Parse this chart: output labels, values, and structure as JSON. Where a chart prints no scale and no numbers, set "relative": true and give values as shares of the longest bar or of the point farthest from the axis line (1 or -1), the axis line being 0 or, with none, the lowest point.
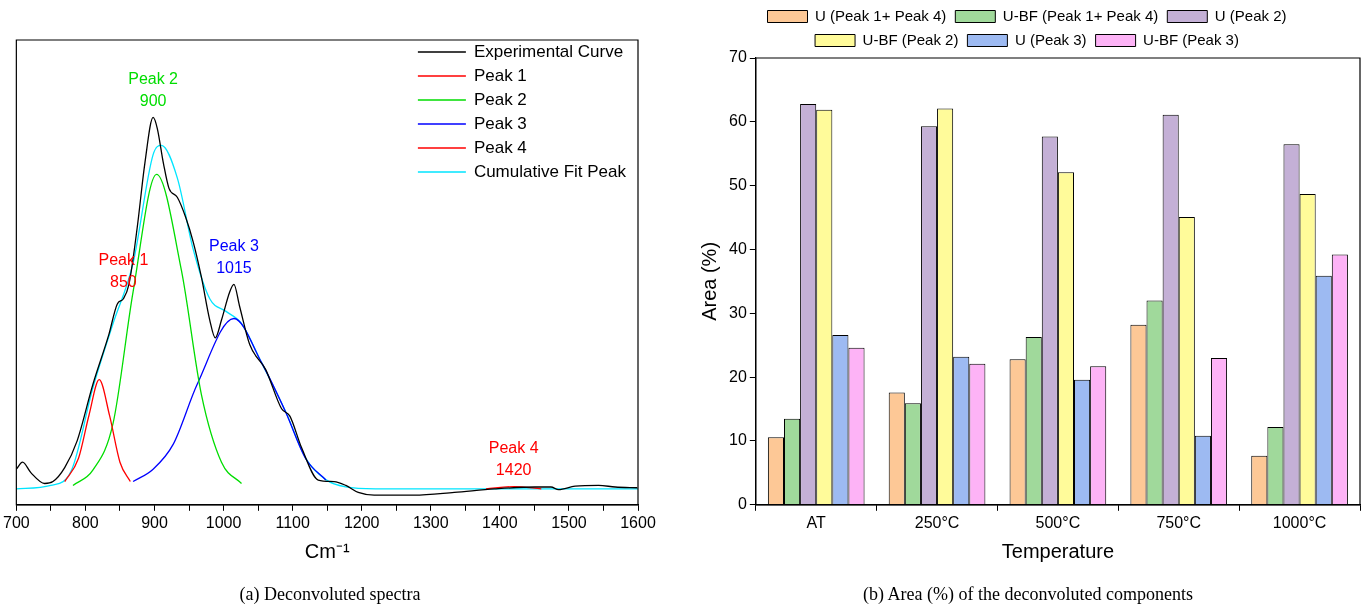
{
  "chart_data": [
    {
      "type": "line",
      "relative": true,
      "xlabel": "Cm⁻¹",
      "xlim": [
        700,
        1600
      ],
      "xticks": [
        700,
        {
          "value": 750,
          "label": null
        },
        800,
        {
          "value": 850,
          "label": null
        },
        900,
        {
          "value": 950,
          "label": null
        },
        1000,
        {
          "value": 1050,
          "label": null
        },
        1100,
        {
          "value": 1150,
          "label": null
        },
        1200,
        {
          "value": 1250,
          "label": null
        },
        1300,
        {
          "value": 1350,
          "label": null
        },
        1400,
        {
          "value": 1450,
          "label": null
        },
        1500,
        {
          "value": 1550,
          "label": null
        },
        1600
      ],
      "legend": "top right",
      "tick_labels": "x",
      "grid": false,
      "marker": "none",
      "line_style": "solid",
      "series": [
        {
          "name": "Experimental Curve",
          "color": "#000000",
          "x": [
            700,
            709,
            721,
            741,
            753,
            770,
            788,
            811,
            834,
            846,
            855,
            863,
            875,
            886,
            898,
            904,
            913,
            921,
            933,
            945,
            956,
            968,
            980,
            988,
            997,
            1009,
            1015,
            1023,
            1038,
            1061,
            1084,
            1096,
            1113,
            1137,
            1160,
            1177,
            1195,
            1218,
            1276,
            1334,
            1392,
            1451,
            1474,
            1485,
            1509,
            1543,
            1567,
            1599
          ],
          "values": [
            0.092,
            0.11,
            0.083,
            0.055,
            0.06,
            0.096,
            0.165,
            0.312,
            0.44,
            0.518,
            0.532,
            0.569,
            0.716,
            0.881,
            1,
            0.972,
            0.881,
            0.817,
            0.794,
            0.743,
            0.679,
            0.587,
            0.477,
            0.431,
            0.477,
            0.55,
            0.569,
            0.514,
            0.413,
            0.349,
            0.248,
            0.229,
            0.147,
            0.064,
            0.06,
            0.05,
            0.032,
            0.025,
            0.025,
            0.032,
            0.041,
            0.046,
            0.046,
            0.039,
            0.048,
            0.05,
            0.046,
            0.044
          ]
        },
        {
          "name": "Peak 1",
          "color": "#ff0000",
          "x": [
            770,
            790,
            805,
            820,
            835,
            850,
            865
          ],
          "values": [
            0.06,
            0.12,
            0.23,
            0.323,
            0.23,
            0.11,
            0.06
          ]
        },
        {
          "name": "Peak 2",
          "color": "#00dd00",
          "x": [
            782,
            811,
            840,
            869,
            903,
            939,
            968,
            997,
            1026
          ],
          "values": [
            0.05,
            0.09,
            0.21,
            0.55,
            0.853,
            0.605,
            0.284,
            0.11,
            0.055
          ]
        },
        {
          "name": "Peak 3",
          "color": "#0000ff",
          "x": [
            869,
            898,
            927,
            962,
            1015,
            1055,
            1090,
            1119,
            1148
          ],
          "values": [
            0.06,
            0.092,
            0.156,
            0.312,
            0.481,
            0.367,
            0.239,
            0.119,
            0.064
          ]
        },
        {
          "name": "Peak 4",
          "color": "#ff0000",
          "x": [
            1380,
            1420,
            1460
          ],
          "values": [
            0.041,
            0.047,
            0.041
          ]
        },
        {
          "name": "Cumulative Fit Peak",
          "color": "#00e5ff",
          "x": [
            700,
            750,
            780,
            811,
            840,
            869,
            898,
            910,
            933,
            956,
            980,
            1003,
            1026,
            1055,
            1090,
            1119,
            1148,
            1177,
            1220,
            1600
          ],
          "values": [
            0.041,
            0.05,
            0.09,
            0.303,
            0.468,
            0.624,
            0.904,
            0.928,
            0.844,
            0.66,
            0.532,
            0.5,
            0.468,
            0.367,
            0.24,
            0.12,
            0.065,
            0.046,
            0.041,
            0.041
          ]
        }
      ],
      "annotations": [
        {
          "text": "Peak 1\n850",
          "x": 855,
          "y": 0.532
        },
        {
          "text": "Peak 2\n900",
          "x": 898,
          "y": 1
        },
        {
          "text": "Peak 3\n1015",
          "x": 1015,
          "y": 0.569
        },
        {
          "text": "Peak 4\n1420",
          "x": 1420,
          "y": 0.047
        },
        "(a)   Deconvoluted spectra"
      ]
    },
    {
      "type": "bar",
      "ylabel": "Area (%)",
      "xlabel": "Temperature",
      "categories": [
        "AT",
        "250°C",
        "500°C",
        "750°C",
        "1000°C"
      ],
      "ylim": [
        0,
        70
      ],
      "yticks": [
        0,
        10,
        20,
        30,
        40,
        50,
        60,
        70
      ],
      "legend": "top",
      "grid": false,
      "series": [
        {
          "name": "U (Peak 1+ Peak 4)",
          "color": "#fdc896",
          "values": [
            10.6,
            17.6,
            22.8,
            28.2,
            7.7
          ]
        },
        {
          "name": "U-BF (Peak 1+ Peak 4)",
          "color": "#a0d99b",
          "values": [
            13.5,
            15.9,
            26.3,
            32.0,
            12.2
          ]
        },
        {
          "name": "U (Peak 2)",
          "color": "#c4b0d6",
          "values": [
            62.8,
            59.3,
            57.7,
            61.1,
            56.5
          ]
        },
        {
          "name": "U-BF (Peak 2)",
          "color": "#fffb9a",
          "values": [
            61.9,
            62.1,
            52.1,
            45.1,
            48.7
          ]
        },
        {
          "name": "U (Peak 3)",
          "color": "#9dbaf2",
          "values": [
            26.6,
            23.2,
            19.6,
            10.8,
            35.9
          ]
        },
        {
          "name": "U-BF (Peak 3)",
          "color": "#fdb3f6",
          "values": [
            24.6,
            22.1,
            21.7,
            23.0,
            39.2
          ]
        }
      ],
      "annotations": [
        "(b)   Area (%) of the deconvoluted components"
      ]
    }
  ]
}
